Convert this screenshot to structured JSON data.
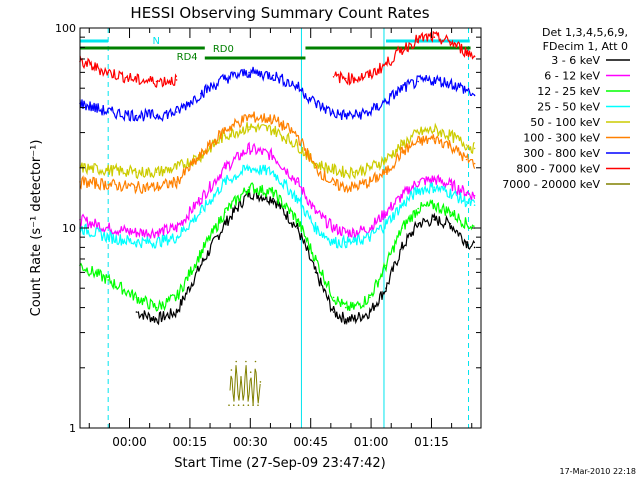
{
  "chart_data": {
    "type": "line",
    "title": "HESSI Observing Summary Count Rates",
    "xlabel": "Start Time (27-Sep-09 23:47:42)",
    "ylabel": "Count Rate (s⁻¹ detector⁻¹)",
    "y_scale": "log",
    "ylim": [
      1,
      100
    ],
    "y_ticks": [
      {
        "value": 1,
        "label": "1"
      },
      {
        "value": 10,
        "label": "10"
      },
      {
        "value": 100,
        "label": "100"
      }
    ],
    "xlim": [
      "23:47:42",
      "01:27:20"
    ],
    "x_ticks": [
      "00:00",
      "00:15",
      "00:30",
      "00:45",
      "01:00",
      "01:15"
    ],
    "x_tick_values": [
      12.3,
      27.3,
      42.3,
      57.3,
      72.3,
      87.3
    ],
    "grid": false,
    "legend_position": "right",
    "legend_header": [
      "Det 1,3,4,5,6,9,",
      "FDecim 1, Att 0"
    ],
    "series": [
      {
        "name": "3 - 6 keV",
        "color": "#000000",
        "x": [
          0,
          7,
          14,
          19,
          24,
          30,
          36,
          42,
          48,
          54,
          58.5,
          63,
          66,
          68,
          72,
          76,
          80,
          84,
          88,
          92,
          96,
          98
        ],
        "y": [
          null,
          null,
          3.8,
          3.5,
          3.8,
          6.5,
          10.5,
          15,
          14,
          10,
          6,
          3.8,
          3.5,
          3.5,
          3.8,
          5,
          8,
          10.5,
          11,
          10.5,
          8.5,
          8
        ]
      },
      {
        "name": "6 - 12 keV",
        "color": "#ff00ff",
        "x": [
          0,
          7,
          14,
          19,
          24,
          30,
          36,
          42,
          48,
          54,
          58.5,
          63,
          66,
          68,
          72,
          76,
          80,
          84,
          88,
          92,
          96,
          98
        ],
        "y": [
          11,
          10,
          9.5,
          9.5,
          10,
          14,
          20,
          25,
          23,
          17,
          12,
          10,
          9.5,
          9.5,
          10,
          12,
          14.5,
          17,
          17.5,
          16.5,
          15,
          14.5
        ]
      },
      {
        "name": "12 - 25 keV",
        "color": "#00ff00",
        "x": [
          0,
          7,
          14,
          19,
          24,
          30,
          36,
          42,
          48,
          54,
          58.5,
          63,
          66,
          68,
          72,
          76,
          80,
          84,
          88,
          92,
          96,
          98
        ],
        "y": [
          6.5,
          5.5,
          4.5,
          4,
          4.5,
          7.5,
          12,
          16,
          15,
          11,
          7,
          4.5,
          4,
          4,
          4.5,
          6.5,
          10,
          12.5,
          13,
          12,
          10.5,
          10
        ]
      },
      {
        "name": "25 - 50 keV",
        "color": "#00ffff",
        "x": [
          0,
          7,
          14,
          19,
          24,
          30,
          36,
          42,
          48,
          54,
          58.5,
          63,
          66,
          68,
          72,
          76,
          80,
          84,
          88,
          92,
          96,
          98
        ],
        "y": [
          10,
          9,
          8.5,
          8.5,
          9,
          12,
          17,
          20,
          19,
          14,
          10,
          8.5,
          8.5,
          8.5,
          9,
          10.5,
          13,
          15.5,
          16,
          15,
          13.5,
          13
        ]
      },
      {
        "name": "50 - 100 keV",
        "color": "#cccc00",
        "x": [
          0,
          7,
          14,
          19,
          24,
          30,
          36,
          42,
          48,
          54,
          58.5,
          63,
          66,
          68,
          72,
          76,
          80,
          84,
          88,
          92,
          96,
          98
        ],
        "y": [
          20,
          19.5,
          19,
          19,
          20,
          23,
          29,
          32,
          31,
          26,
          21,
          19.5,
          19,
          19,
          20,
          22,
          26,
          30,
          31,
          29,
          26,
          25
        ]
      },
      {
        "name": "100 - 300 keV",
        "color": "#ff8000",
        "x": [
          0,
          7,
          14,
          19,
          24,
          30,
          36,
          42,
          48,
          54,
          58.5,
          63,
          66,
          68,
          72,
          76,
          80,
          84,
          88,
          92,
          96,
          98
        ],
        "y": [
          17,
          16.5,
          16,
          16,
          17,
          23,
          31,
          36,
          35,
          29,
          20,
          16.5,
          16,
          16,
          17,
          19,
          24,
          27,
          28,
          26,
          22,
          21
        ]
      },
      {
        "name": "300 - 800 keV",
        "color": "#0000ff",
        "x": [
          0,
          7,
          14,
          19,
          24,
          30,
          36,
          42,
          48,
          54,
          58.5,
          63,
          66,
          68,
          72,
          76,
          80,
          84,
          88,
          92,
          96,
          98
        ],
        "y": [
          42,
          38,
          36.5,
          36.5,
          38,
          47,
          56,
          60,
          58,
          51,
          42,
          37.5,
          36.5,
          36.5,
          38,
          43,
          50,
          54,
          55,
          53,
          49,
          46
        ]
      },
      {
        "name": "800 - 7000 keV",
        "color": "#ff0000",
        "x": [
          0,
          7,
          14,
          19,
          24,
          30,
          36,
          42,
          48,
          54,
          58.5,
          63,
          66,
          68,
          72,
          76,
          80,
          84,
          88,
          92,
          96,
          98
        ],
        "y": [
          68,
          60,
          55,
          54,
          55,
          null,
          null,
          null,
          null,
          null,
          null,
          57,
          56,
          56,
          58,
          66,
          78,
          88,
          90,
          85,
          76,
          72
        ]
      },
      {
        "name": "7000 - 20000 keV",
        "color": "#808000",
        "x": [
          0,
          37,
          37.6,
          38.2,
          38.8,
          39.4,
          40,
          40.6,
          41.2,
          41.8,
          42.4,
          43,
          43.6,
          44.2,
          44.8,
          45,
          98
        ],
        "y": [
          null,
          1.3,
          1.95,
          1.3,
          2.15,
          1.3,
          1.8,
          1.3,
          2.15,
          1.3,
          1.9,
          1.3,
          2.15,
          1.3,
          1.7,
          null,
          null
        ]
      }
    ],
    "annotations": [
      {
        "text": "N",
        "color": "#00e5ee"
      },
      {
        "text": "RD4",
        "color": "#008000"
      },
      {
        "text": "RD0",
        "color": "#008000"
      }
    ]
  },
  "footer": {
    "date": "17-Mar-2010 22:18"
  }
}
